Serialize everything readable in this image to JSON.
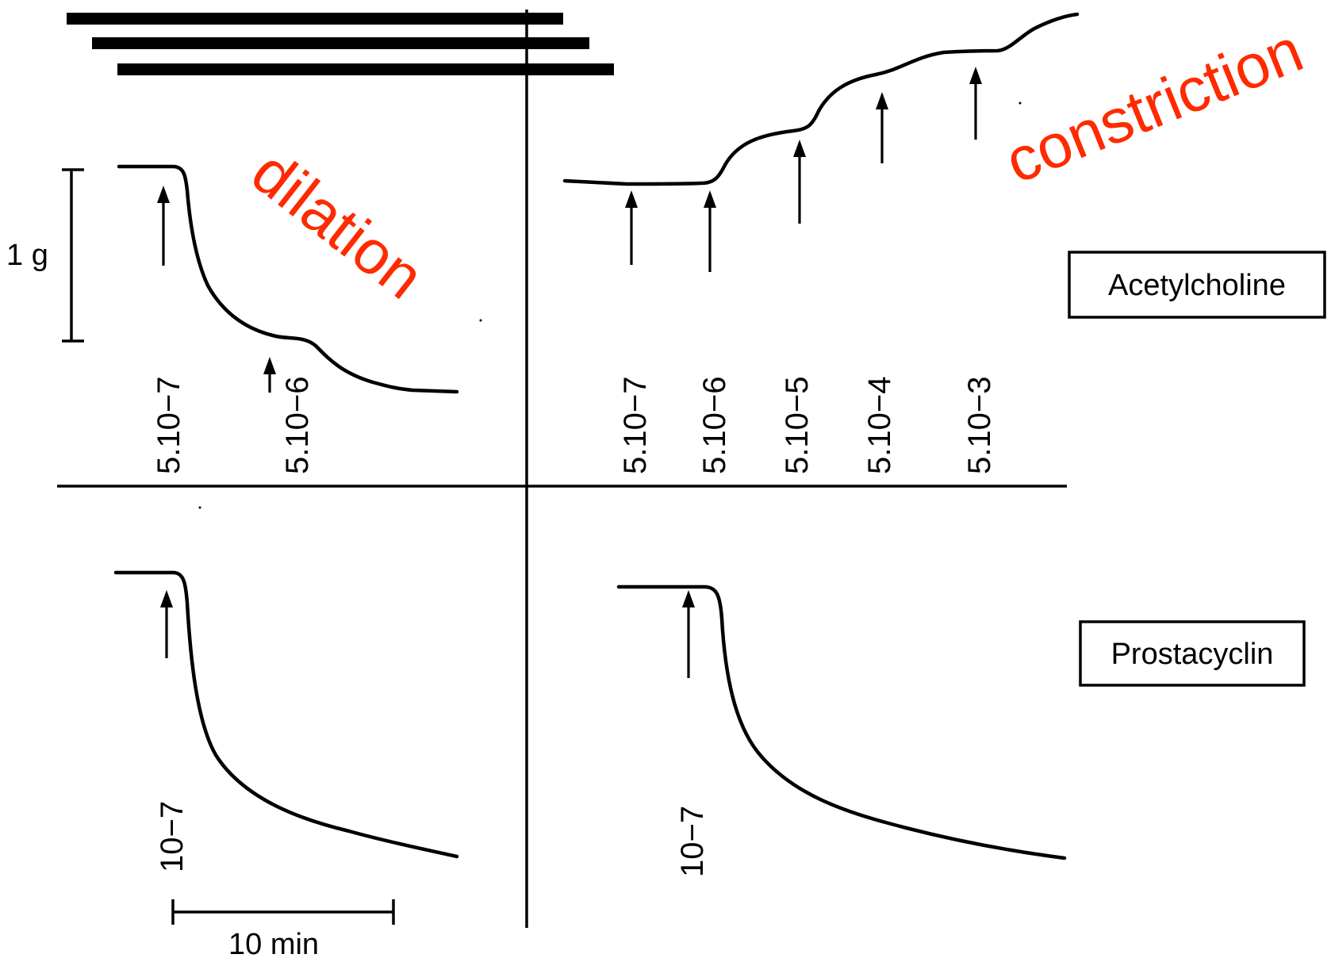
{
  "scale": {
    "force_label": "1 g",
    "time_label": "10 min"
  },
  "agents": {
    "top": "Acetylcholine",
    "bottom": "Prostacyclin"
  },
  "annotations": {
    "dilation": "dilation",
    "constriction": "constriction",
    "color": "#ff2a00"
  },
  "top_left": {
    "doses": [
      "5.10−7",
      "5.10−6"
    ]
  },
  "top_right": {
    "doses": [
      "5.10−7",
      "5.10−6",
      "5.10−5",
      "5.10−4",
      "5.10−3"
    ]
  },
  "bottom_left": {
    "doses": [
      "10−7"
    ]
  },
  "bottom_right": {
    "doses": [
      "10−7"
    ]
  }
}
